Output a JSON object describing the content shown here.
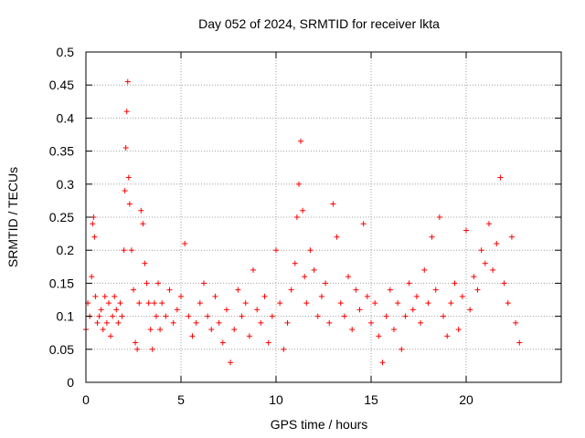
{
  "chart_data": {
    "type": "scatter",
    "title": "Day 052 of 2024, SRMTID for receiver lkta",
    "xlabel": "GPS time / hours",
    "ylabel": "SRMTID / TECUs",
    "xlim": [
      0,
      25
    ],
    "ylim": [
      0,
      0.5
    ],
    "x_ticks": [
      0,
      5,
      10,
      15,
      20
    ],
    "x_tick_labels": [
      "0",
      "5",
      "10",
      "15",
      "20"
    ],
    "y_ticks": [
      0,
      0.05,
      0.1,
      0.15,
      0.2,
      0.25,
      0.3,
      0.35,
      0.4,
      0.45,
      0.5
    ],
    "y_tick_labels": [
      "0",
      "0.05",
      "0.1",
      "0.15",
      "0.2",
      "0.25",
      "0.3",
      "0.35",
      "0.4",
      "0.45",
      "0.5"
    ],
    "grid": true,
    "marker": "+",
    "marker_color": "#ff0000",
    "series": [
      {
        "name": "SRMTID",
        "x": [
          0.0,
          0.1,
          0.2,
          0.3,
          0.35,
          0.4,
          0.45,
          0.5,
          0.6,
          0.7,
          0.8,
          0.9,
          1.0,
          1.1,
          1.2,
          1.3,
          1.4,
          1.5,
          1.6,
          1.7,
          1.8,
          1.9,
          2.0,
          2.05,
          2.1,
          2.15,
          2.2,
          2.25,
          2.3,
          2.4,
          2.5,
          2.6,
          2.7,
          2.8,
          2.9,
          3.0,
          3.1,
          3.2,
          3.3,
          3.4,
          3.5,
          3.6,
          3.7,
          3.8,
          3.9,
          4.0,
          4.2,
          4.4,
          4.6,
          4.8,
          5.0,
          5.2,
          5.4,
          5.6,
          5.8,
          6.0,
          6.2,
          6.4,
          6.6,
          6.8,
          7.0,
          7.2,
          7.4,
          7.6,
          7.8,
          8.0,
          8.2,
          8.4,
          8.6,
          8.8,
          9.0,
          9.2,
          9.4,
          9.6,
          9.8,
          10.0,
          10.2,
          10.4,
          10.6,
          10.8,
          11.0,
          11.1,
          11.2,
          11.3,
          11.4,
          11.5,
          11.6,
          11.8,
          12.0,
          12.2,
          12.4,
          12.6,
          12.8,
          13.0,
          13.2,
          13.4,
          13.6,
          13.8,
          14.0,
          14.2,
          14.4,
          14.6,
          14.8,
          15.0,
          15.2,
          15.4,
          15.6,
          15.8,
          16.0,
          16.2,
          16.4,
          16.6,
          16.8,
          17.0,
          17.2,
          17.4,
          17.6,
          17.8,
          18.0,
          18.2,
          18.4,
          18.6,
          18.8,
          19.0,
          19.2,
          19.4,
          19.6,
          19.8,
          20.0,
          20.2,
          20.4,
          20.6,
          20.8,
          21.0,
          21.2,
          21.4,
          21.6,
          21.8,
          22.0,
          22.2,
          22.4,
          22.6,
          22.8
        ],
        "values": [
          0.08,
          0.12,
          0.1,
          0.16,
          0.24,
          0.25,
          0.22,
          0.13,
          0.09,
          0.1,
          0.11,
          0.08,
          0.13,
          0.09,
          0.12,
          0.07,
          0.1,
          0.13,
          0.11,
          0.09,
          0.12,
          0.1,
          0.2,
          0.29,
          0.355,
          0.41,
          0.455,
          0.31,
          0.27,
          0.2,
          0.14,
          0.06,
          0.05,
          0.12,
          0.26,
          0.24,
          0.18,
          0.15,
          0.12,
          0.08,
          0.05,
          0.12,
          0.1,
          0.15,
          0.08,
          0.12,
          0.1,
          0.14,
          0.09,
          0.11,
          0.13,
          0.21,
          0.1,
          0.07,
          0.09,
          0.12,
          0.15,
          0.1,
          0.08,
          0.13,
          0.09,
          0.06,
          0.11,
          0.03,
          0.08,
          0.14,
          0.1,
          0.12,
          0.07,
          0.17,
          0.11,
          0.09,
          0.13,
          0.06,
          0.1,
          0.2,
          0.12,
          0.05,
          0.09,
          0.14,
          0.18,
          0.25,
          0.3,
          0.365,
          0.26,
          0.16,
          0.12,
          0.2,
          0.17,
          0.1,
          0.13,
          0.15,
          0.09,
          0.27,
          0.22,
          0.12,
          0.1,
          0.16,
          0.08,
          0.14,
          0.11,
          0.24,
          0.13,
          0.09,
          0.12,
          0.07,
          0.03,
          0.1,
          0.14,
          0.08,
          0.12,
          0.05,
          0.1,
          0.15,
          0.11,
          0.13,
          0.09,
          0.17,
          0.12,
          0.22,
          0.14,
          0.25,
          0.1,
          0.07,
          0.12,
          0.15,
          0.08,
          0.13,
          0.23,
          0.11,
          0.16,
          0.14,
          0.2,
          0.18,
          0.24,
          0.17,
          0.21,
          0.31,
          0.15,
          0.12,
          0.22,
          0.09,
          0.06
        ]
      }
    ]
  }
}
